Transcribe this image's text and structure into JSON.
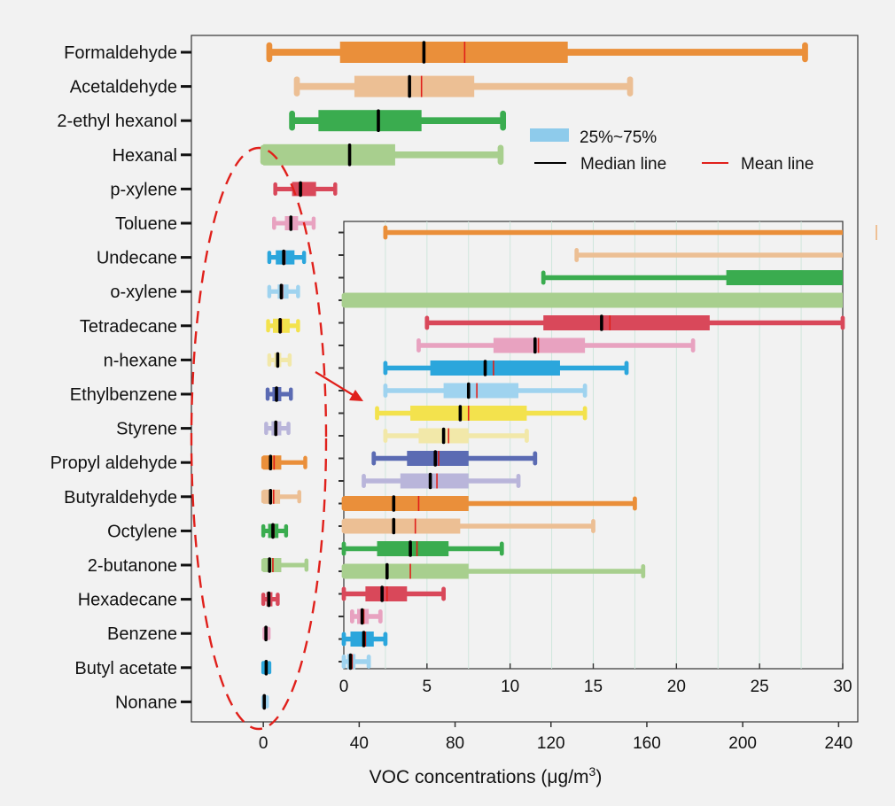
{
  "chart_data": [
    {
      "type": "box",
      "xlabel_prefix": "VOC concentrations (μg/m",
      "xlabel_sup": "3",
      "xlabel_suffix": ")",
      "xlim": [
        -30,
        248
      ],
      "xticks": [
        0,
        40,
        80,
        120,
        160,
        200,
        240
      ],
      "legend": {
        "position": "top-right",
        "iqr_label": "25%~75%",
        "median_label": "Median line",
        "mean_label": "Mean line",
        "iqr_color": "#8ecbeb",
        "median_color": "#000000",
        "mean_color": "#e0201b"
      },
      "series": [
        {
          "name": "Formaldehyde",
          "color": "#ea8f3a",
          "min": 2.5,
          "q1": 32,
          "median": 67,
          "mean": 84,
          "q3": 127,
          "max": 226
        },
        {
          "name": "Acetaldehyde",
          "color": "#ecbf94",
          "min": 14,
          "q1": 38,
          "median": 61,
          "mean": 66,
          "q3": 88,
          "max": 153
        },
        {
          "name": "2-ethyl hexanol",
          "color": "#3aac4f",
          "min": 12,
          "q1": 23,
          "median": 48,
          "mean": 48,
          "q3": 66,
          "max": 100
        },
        {
          "name": "Hexanal",
          "color": "#a8cf8e",
          "min": 0,
          "q1": 0,
          "median": 36,
          "mean": 36,
          "q3": 55,
          "max": 99
        },
        {
          "name": "p-xylene",
          "color": "#d9485a",
          "min": 5,
          "q1": 12,
          "median": 15.5,
          "mean": 16,
          "q3": 22,
          "max": 30
        },
        {
          "name": "Toluene",
          "color": "#e8a2c0",
          "min": 4.5,
          "q1": 9,
          "median": 11.5,
          "mean": 11.7,
          "q3": 14.5,
          "max": 21
        },
        {
          "name": "Undecane",
          "color": "#2ba6dc",
          "min": 2.5,
          "q1": 5.2,
          "median": 8.5,
          "mean": 9,
          "q3": 13,
          "max": 17
        },
        {
          "name": "o-xylene",
          "color": "#9fd3ef",
          "min": 2.5,
          "q1": 6,
          "median": 7.5,
          "mean": 8,
          "q3": 10.5,
          "max": 14.5
        },
        {
          "name": "Tetradecane",
          "color": "#f3e24d",
          "min": 2,
          "q1": 4,
          "median": 7,
          "mean": 7.5,
          "q3": 11,
          "max": 14.5
        },
        {
          "name": "n-hexane",
          "color": "#f2e8a9",
          "min": 2.5,
          "q1": 4.5,
          "median": 6,
          "mean": 6.3,
          "q3": 7.5,
          "max": 11
        },
        {
          "name": "Ethylbenzene",
          "color": "#5b6bb3",
          "min": 1.8,
          "q1": 3.8,
          "median": 5.5,
          "mean": 5.7,
          "q3": 7.5,
          "max": 11.5
        },
        {
          "name": "Styrene",
          "color": "#b9b5da",
          "min": 1.2,
          "q1": 3.4,
          "median": 5.2,
          "mean": 5.6,
          "q3": 7.5,
          "max": 10.5
        },
        {
          "name": "Propyl aldehyde",
          "color": "#ea8f3a",
          "min": 0,
          "q1": 0,
          "median": 3,
          "mean": 4.5,
          "q3": 7.5,
          "max": 17.5
        },
        {
          "name": "Butyraldehyde",
          "color": "#ecbf94",
          "min": 0,
          "q1": 0,
          "median": 3,
          "mean": 4.3,
          "q3": 7,
          "max": 15
        },
        {
          "name": "Octylene",
          "color": "#3aac4f",
          "min": 0,
          "q1": 2,
          "median": 4,
          "mean": 4.4,
          "q3": 6.3,
          "max": 9.5
        },
        {
          "name": "2-butanone",
          "color": "#a8cf8e",
          "min": 0,
          "q1": 0,
          "median": 2.6,
          "mean": 4,
          "q3": 7.5,
          "max": 18
        },
        {
          "name": "Hexadecane",
          "color": "#d9485a",
          "min": 0,
          "q1": 1.3,
          "median": 2.3,
          "mean": 2.6,
          "q3": 3.8,
          "max": 6
        },
        {
          "name": "Benzene",
          "color": "#e8a2c0",
          "min": 0.5,
          "q1": 0.8,
          "median": 1.1,
          "mean": 1.2,
          "q3": 1.5,
          "max": 2.2
        },
        {
          "name": "Butyl acetate",
          "color": "#2ba6dc",
          "min": 0,
          "q1": 0.4,
          "median": 1.2,
          "mean": 1.3,
          "q3": 1.8,
          "max": 2.5
        },
        {
          "name": "Nonane",
          "color": "#9fd3ef",
          "min": 0,
          "q1": 0.2,
          "median": 0.4,
          "mean": 0.5,
          "q3": 0.7,
          "max": 1.5
        }
      ]
    },
    {
      "type": "box",
      "role": "inset",
      "xlim": [
        0,
        30
      ],
      "xticks": [
        0,
        5,
        10,
        15,
        20,
        25,
        30
      ],
      "note": "zoomed view of the same 20 series"
    }
  ]
}
